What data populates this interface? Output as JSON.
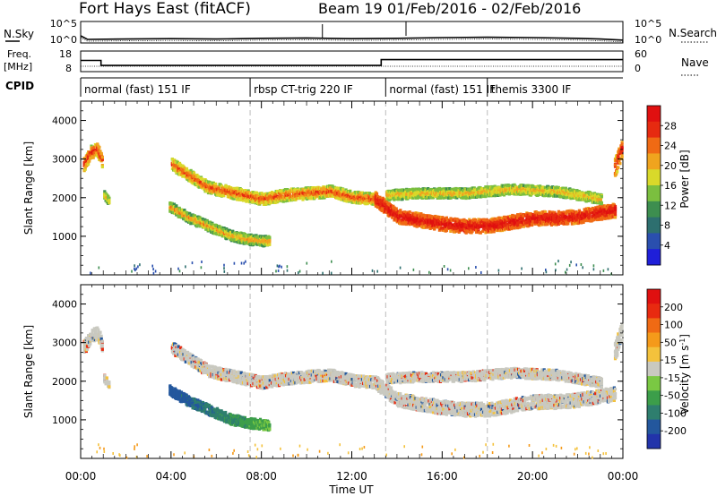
{
  "header": {
    "station": "Fort Hays East (fitACF)",
    "beam": "Beam 19",
    "dates": "01/Feb/2016 - 02/Feb/2016"
  },
  "noise_panel": {
    "left_label": "N.Sky",
    "left_ticks": [
      "10^5",
      "10^0"
    ],
    "right_ticks": [
      "10^5",
      "10^0"
    ],
    "right_label": "N.Search"
  },
  "freq_panel": {
    "left_label_1": "Freq.",
    "left_label_2": "[MHz]",
    "left_ticks": [
      "18",
      "8"
    ],
    "right_ticks": [
      "60",
      "0"
    ],
    "right_label": "Nave"
  },
  "cpid_panel": {
    "label": "CPID",
    "segments": [
      {
        "label": "normal (fast) 151 IF",
        "start_h": 0,
        "end_h": 7.5
      },
      {
        "label": "rbsp CT-trig 220 IF",
        "start_h": 7.5,
        "end_h": 13.5
      },
      {
        "label": "normal (fast) 151 IF",
        "start_h": 13.5,
        "end_h": 18.0
      },
      {
        "label": "themis 3300 IF",
        "start_h": 18.0,
        "end_h": 24.0
      }
    ]
  },
  "power_panel": {
    "ylabel": "Slant Range [km]",
    "yticks": [
      "4000",
      "3000",
      "2000",
      "1000"
    ],
    "colorbar_label": "Power [dB]",
    "colorbar_ticks": [
      "28",
      "24",
      "20",
      "16",
      "12",
      "8",
      "4"
    ],
    "colors": [
      "#1f1fd9",
      "#2a4fae",
      "#2d6f6f",
      "#3d8e4f",
      "#7bbf3f",
      "#d9d92a",
      "#f0a41e",
      "#f06a14",
      "#e62a10",
      "#e01010"
    ]
  },
  "velocity_panel": {
    "ylabel": "Slant Range [km]",
    "yticks": [
      "4000",
      "3000",
      "2000",
      "1000"
    ],
    "colorbar_label": "Velocity [m s",
    "colorbar_sup": "-1",
    "colorbar_label_end": "]",
    "colorbar_ticks": [
      "200",
      "100",
      "50",
      "15",
      "-15",
      "-50",
      "-100",
      "-200"
    ],
    "colors": [
      "#2233aa",
      "#23579d",
      "#2e7e6e",
      "#3c9e4a",
      "#7ac843",
      "#c9c9c0",
      "#f4c23c",
      "#f59a1a",
      "#f06a14",
      "#e82a10",
      "#e01010"
    ]
  },
  "x_axis": {
    "tick_labels": [
      "00:00",
      "04:00",
      "08:00",
      "12:00",
      "16:00",
      "20:00",
      "00:00"
    ],
    "label": "Time UT"
  },
  "chart_data": {
    "type": "heatmap",
    "title": "Fort Hays East (fitACF) Beam 19 01/Feb/2016 - 02/Feb/2016",
    "x_unit": "hours UT",
    "xlim": [
      0,
      24
    ],
    "ylim": [
      0,
      4500
    ],
    "ylabel": "Slant Range [km]",
    "xlabel": "Time UT",
    "power_range_db": [
      0,
      30
    ],
    "velocity_range": [
      -200,
      200
    ],
    "noise_sky_log10": [
      [
        0,
        1.5
      ],
      [
        0.3,
        0.5
      ],
      [
        2,
        0.6
      ],
      [
        4,
        0.7
      ],
      [
        6,
        0.6
      ],
      [
        8,
        0.8
      ],
      [
        10,
        0.9
      ],
      [
        12,
        0.7
      ],
      [
        14,
        0.8
      ],
      [
        16,
        1.0
      ],
      [
        18,
        1.1
      ],
      [
        20,
        1.0
      ],
      [
        22,
        0.8
      ],
      [
        23,
        0.6
      ],
      [
        24,
        0.3
      ]
    ],
    "frequency_mhz": [
      [
        0,
        13.5
      ],
      [
        0.9,
        13.5
      ],
      [
        0.9,
        10.6
      ],
      [
        13.3,
        10.6
      ],
      [
        13.3,
        14.0
      ],
      [
        24,
        14.0
      ]
    ],
    "echo_bands": [
      {
        "name": "early_echo",
        "points": [
          [
            0.1,
            2900
          ],
          [
            0.4,
            3200
          ],
          [
            0.7,
            3300
          ],
          [
            0.9,
            3000
          ]
        ],
        "width": 350,
        "power_db": [
          16,
          28
        ]
      },
      {
        "name": "early_small",
        "points": [
          [
            1.0,
            2100
          ],
          [
            1.2,
            1950
          ]
        ],
        "width": 200,
        "power_db": [
          12,
          18
        ]
      },
      {
        "name": "main_upper",
        "points": [
          [
            4.0,
            2900
          ],
          [
            4.8,
            2600
          ],
          [
            5.6,
            2300
          ],
          [
            6.4,
            2200
          ],
          [
            7.2,
            2100
          ],
          [
            8.0,
            2000
          ],
          [
            9.0,
            2100
          ],
          [
            10.0,
            2150
          ],
          [
            11.0,
            2200
          ],
          [
            12.0,
            2050
          ],
          [
            13.0,
            2000
          ]
        ],
        "width": 300,
        "power_db": [
          14,
          26
        ]
      },
      {
        "name": "lower_branch",
        "points": [
          [
            3.9,
            1800
          ],
          [
            4.8,
            1500
          ],
          [
            5.8,
            1250
          ],
          [
            6.6,
            1050
          ],
          [
            7.4,
            950
          ],
          [
            8.3,
            900
          ]
        ],
        "width": 260,
        "power_db": [
          10,
          22
        ]
      },
      {
        "name": "main_lower_strong",
        "points": [
          [
            13.0,
            2000
          ],
          [
            14.0,
            1550
          ],
          [
            15.0,
            1450
          ],
          [
            16.0,
            1350
          ],
          [
            17.0,
            1300
          ],
          [
            18.0,
            1300
          ],
          [
            19.0,
            1400
          ],
          [
            20.0,
            1500
          ],
          [
            21.0,
            1500
          ],
          [
            22.0,
            1550
          ],
          [
            23.0,
            1650
          ],
          [
            23.6,
            1700
          ]
        ],
        "width": 350,
        "power_db": [
          22,
          30
        ]
      },
      {
        "name": "late_upper",
        "points": [
          [
            13.5,
            2100
          ],
          [
            15.0,
            2150
          ],
          [
            17.0,
            2150
          ],
          [
            19.0,
            2250
          ],
          [
            21.0,
            2200
          ],
          [
            23.0,
            2000
          ]
        ],
        "width": 250,
        "power_db": [
          12,
          20
        ]
      },
      {
        "name": "late_end",
        "points": [
          [
            23.6,
            2800
          ],
          [
            23.9,
            3300
          ]
        ],
        "width": 500,
        "power_db": [
          18,
          28
        ]
      }
    ]
  }
}
